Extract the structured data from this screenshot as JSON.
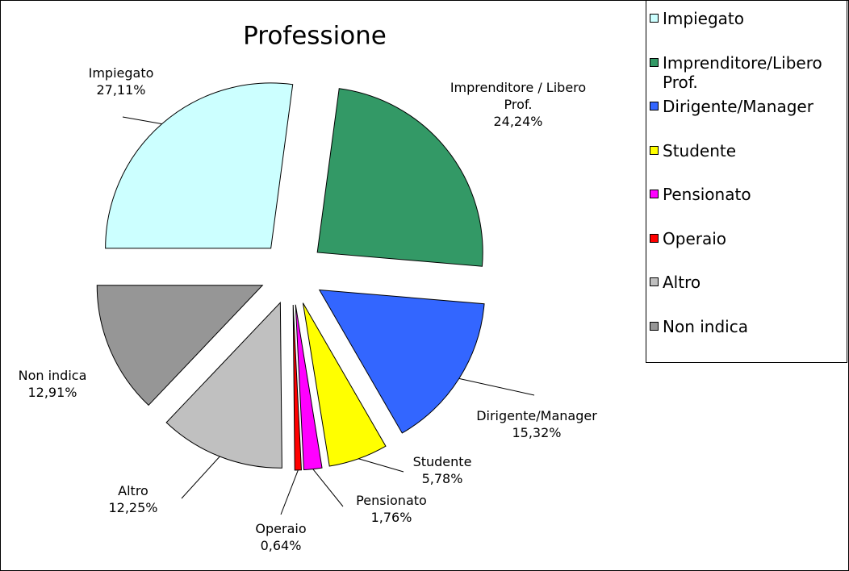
{
  "chart_data": {
    "type": "pie",
    "title": "Professione",
    "categories": [
      "Impiegato",
      "Imprenditore/Libero Prof.",
      "Dirigente/Manager",
      "Studente",
      "Pensionato",
      "Operaio",
      "Altro",
      "Non indica"
    ],
    "slice_labels": [
      "Impiegato",
      "Imprenditore / Libero Prof.",
      "Dirigente/Manager",
      "Studente",
      "Pensionato",
      "Operaio",
      "Altro",
      "Non indica"
    ],
    "values": [
      27.11,
      24.24,
      15.32,
      5.78,
      1.76,
      0.64,
      12.25,
      12.91
    ],
    "value_labels": [
      "27,11%",
      "24,24%",
      "15,32%",
      "5,78%",
      "1,76%",
      "0,64%",
      "12,25%",
      "12,91%"
    ],
    "colors": [
      "#ccffff",
      "#339966",
      "#3366ff",
      "#ffff00",
      "#ff00ff",
      "#ff0000",
      "#c0c0c0",
      "#969696"
    ],
    "legend": "right"
  }
}
